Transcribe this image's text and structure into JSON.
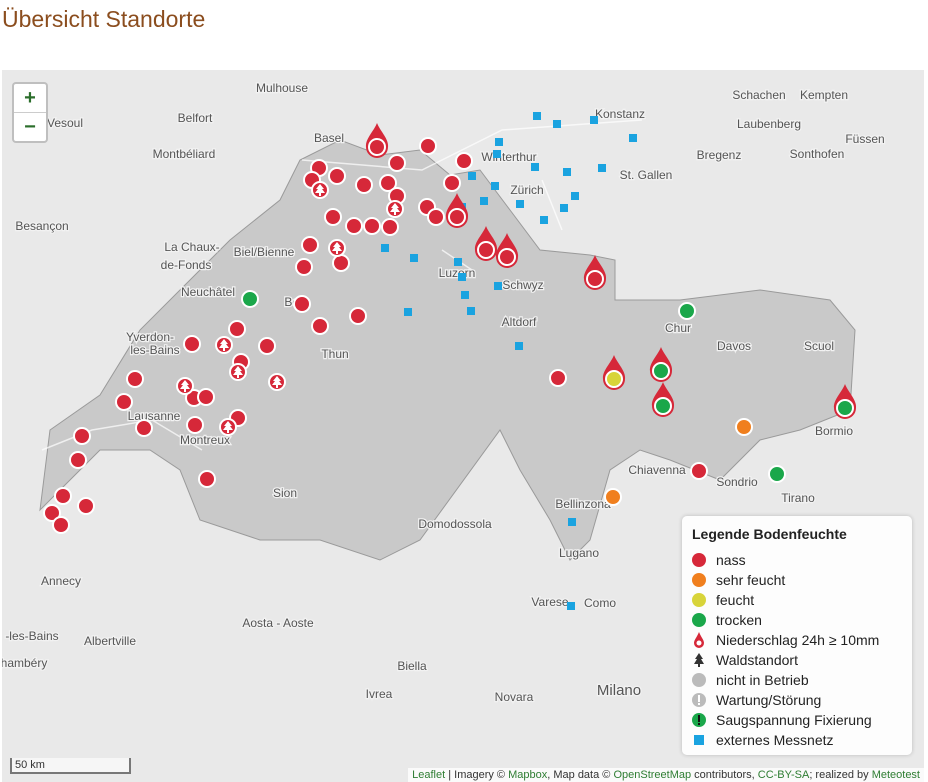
{
  "header": {
    "title": "Übersicht Standorte"
  },
  "map": {
    "zoom_in": "+",
    "zoom_out": "−",
    "labels": [
      "Mulhouse",
      "Belfort",
      "Vesoul",
      "Montbéliard",
      "Besançon",
      "Basel",
      "Winterthur",
      "Konstanz",
      "Schachen",
      "Kempten",
      "Laubenberg",
      "Bregenz",
      "Sonthofen",
      "Füssen",
      "St. Gallen",
      "Zürich",
      "La Chaux-",
      "de-Fonds",
      "Biel/Bienne",
      "Luzern",
      "Schwyz",
      "Neuchâtel",
      "Bern",
      "Altdorf",
      "Chur",
      "Davos",
      "Scuol",
      "Yverdon-",
      "les-Bains",
      "Thun",
      "Lausanne",
      "Montreux",
      "Bormio",
      "Chiavenna",
      "Sion",
      "Sondrio",
      "Tirano",
      "Bellinzona",
      "Domodossola",
      "Lugano",
      "Annecy",
      "Varese",
      "Como",
      "Aosta - Aoste",
      "Albertville",
      "-les-Bains",
      "hambéry",
      "Biella",
      "Ivrea",
      "Milano",
      "Novara"
    ],
    "scale": "50 km",
    "legend": {
      "title": "Legende Bodenfeuchte",
      "items": [
        "nass",
        "sehr feucht",
        "feucht",
        "trocken",
        "Niederschlag 24h ≥ 10mm",
        "Waldstandort",
        "nicht in Betrieb",
        "Wartung/Störung",
        "Saugspannung Fixierung",
        "externes Messnetz"
      ]
    },
    "attribution": [
      "Leaflet",
      " | Imagery © ",
      "Mapbox",
      ", Map data © ",
      "OpenStreetMap",
      " contributors, ",
      "CC-BY-SA",
      "; realized by ",
      "Meteotest"
    ]
  }
}
